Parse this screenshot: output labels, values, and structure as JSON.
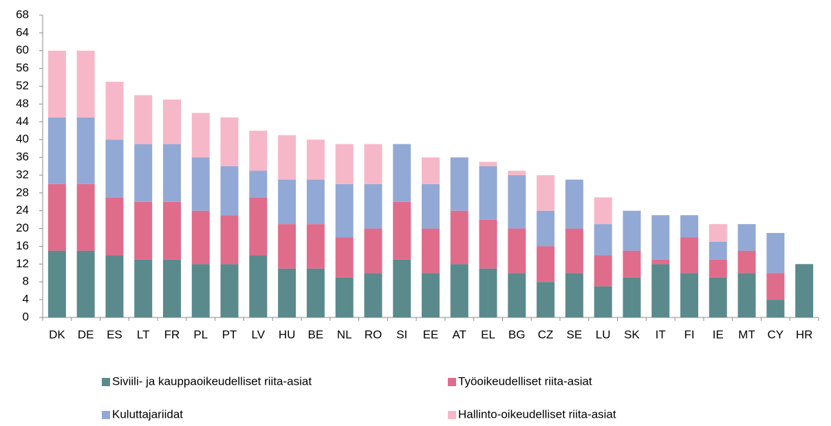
{
  "chart_data": {
    "type": "stacked_bar",
    "categories": [
      "DK",
      "DE",
      "ES",
      "LT",
      "FR",
      "PL",
      "PT",
      "LV",
      "HU",
      "BE",
      "NL",
      "RO",
      "SI",
      "EE",
      "AT",
      "EL",
      "BG",
      "CZ",
      "SE",
      "LU",
      "SK",
      "IT",
      "FI",
      "IE",
      "MT",
      "CY",
      "HR"
    ],
    "series": [
      {
        "name": "Siviili- ja kauppaoikeudelliset riita-asiat",
        "color": "#5b8a8c",
        "values": [
          15,
          15,
          14,
          13,
          13,
          12,
          12,
          14,
          11,
          11,
          9,
          10,
          13,
          10,
          12,
          11,
          10,
          8,
          10,
          7,
          9,
          12,
          10,
          9,
          10,
          4,
          12
        ]
      },
      {
        "name": "Työoikeudelliset riita-asiat",
        "color": "#e06c8c",
        "values": [
          15,
          15,
          13,
          13,
          13,
          12,
          11,
          13,
          10,
          10,
          9,
          10,
          13,
          10,
          12,
          11,
          10,
          8,
          10,
          7,
          6,
          1,
          8,
          4,
          5,
          6,
          0
        ]
      },
      {
        "name": "Kuluttajariidat",
        "color": "#93a9d5",
        "values": [
          15,
          15,
          13,
          13,
          13,
          12,
          11,
          6,
          10,
          10,
          12,
          10,
          13,
          10,
          12,
          12,
          12,
          8,
          11,
          7,
          9,
          10,
          5,
          4,
          6,
          9,
          0
        ]
      },
      {
        "name": "Hallinto-oikeudelliset riita-asiat",
        "color": "#f6b8c8",
        "values": [
          15,
          15,
          13,
          11,
          10,
          10,
          11,
          9,
          10,
          9,
          9,
          9,
          0,
          6,
          0,
          1,
          1,
          8,
          0,
          6,
          0,
          0,
          0,
          4,
          0,
          0,
          0
        ]
      }
    ],
    "ylim": [
      0,
      68
    ],
    "yticks": [
      0,
      4,
      8,
      12,
      16,
      20,
      24,
      28,
      32,
      36,
      40,
      44,
      48,
      52,
      56,
      60,
      64,
      68
    ],
    "grid": false
  }
}
